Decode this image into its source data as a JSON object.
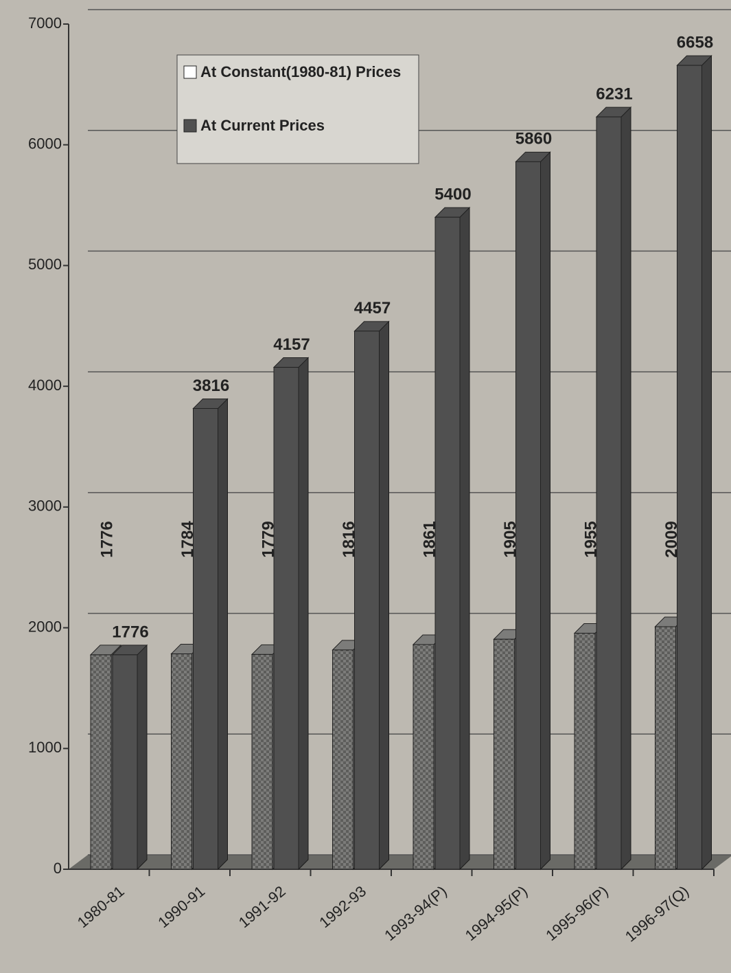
{
  "chart_data": {
    "type": "bar",
    "categories": [
      "1980-81",
      "1990-91",
      "1991-92",
      "1992-93",
      "1993-94(P)",
      "1994-95(P)",
      "1995-96(P)",
      "1996-97(Q)"
    ],
    "series": [
      {
        "name": "At Constant(1980-81) Prices",
        "color": "#7c7c7a",
        "values": [
          1776,
          1784,
          1779,
          1816,
          1861,
          1905,
          1955,
          2009
        ]
      },
      {
        "name": "At Current Prices",
        "color": "#505050",
        "values": [
          1776,
          3816,
          4157,
          4457,
          5400,
          5860,
          6231,
          6658
        ]
      }
    ],
    "ylim": [
      0,
      7000
    ],
    "yticks": [
      0,
      1000,
      2000,
      3000,
      4000,
      5000,
      6000,
      7000
    ],
    "grid": true
  }
}
